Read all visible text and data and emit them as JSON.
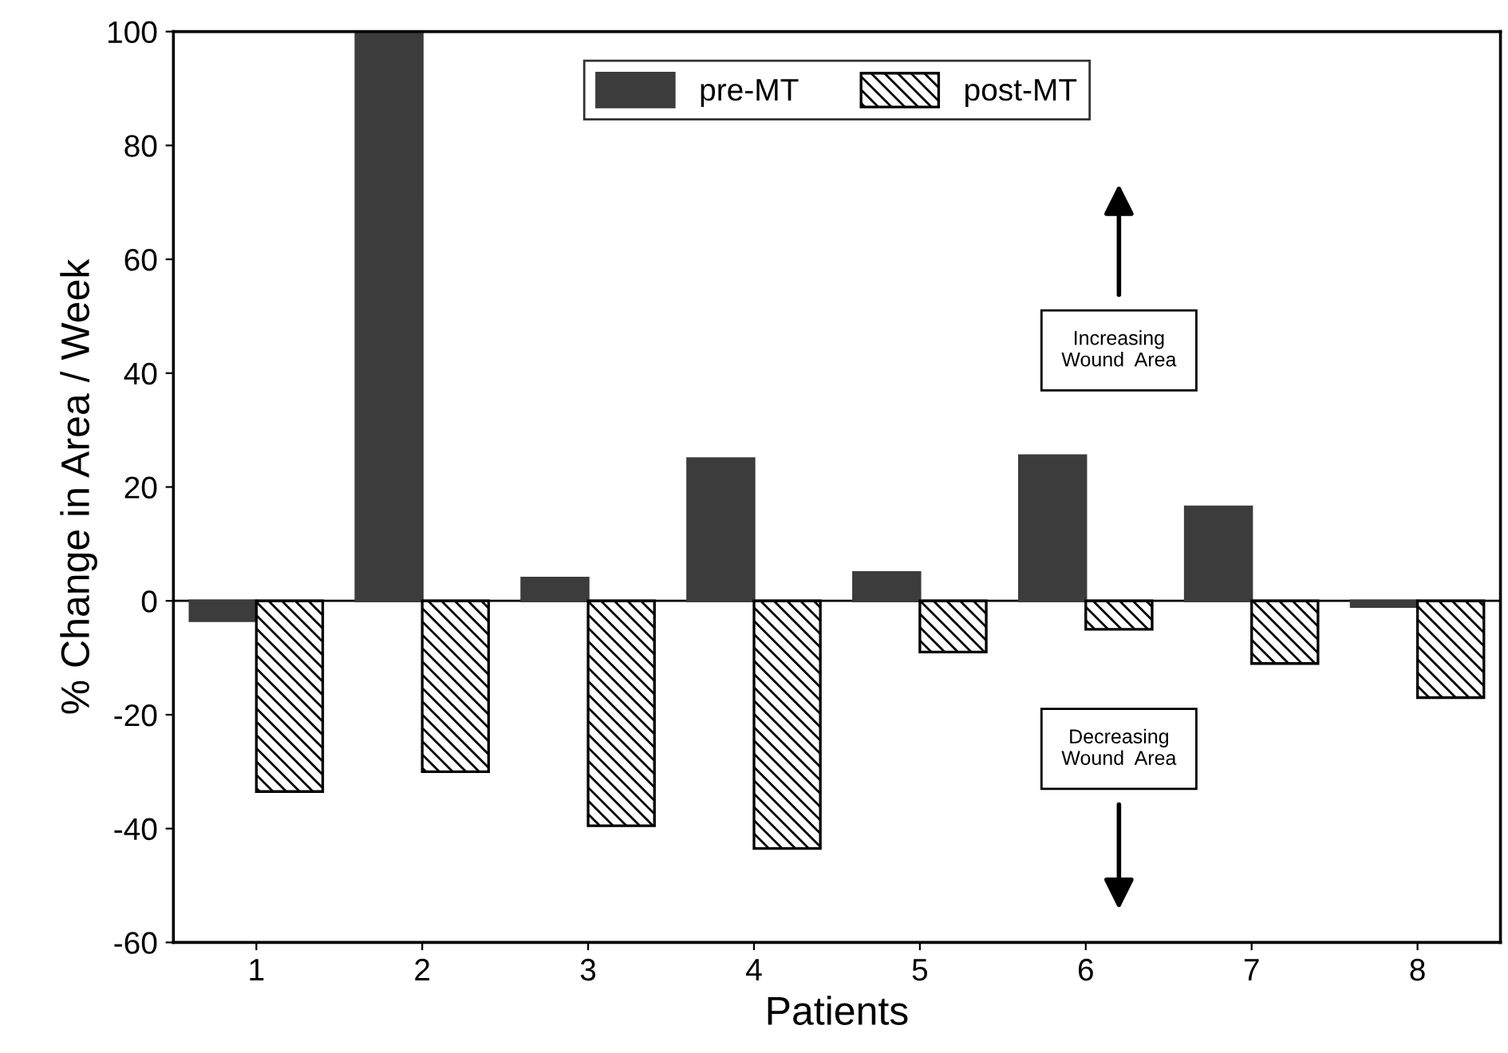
{
  "chart_data": {
    "type": "bar",
    "xlabel": "Patients",
    "ylabel": "% Change in Area / Week",
    "categories": [
      "1",
      "2",
      "3",
      "4",
      "5",
      "6",
      "7",
      "8"
    ],
    "series": [
      {
        "name": "pre-MT",
        "color": "#3c3c3c",
        "values": [
          -3.5,
          100,
          4,
          25,
          5,
          25.5,
          16.5,
          -1
        ]
      },
      {
        "name": "post-MT",
        "color": "#000000",
        "values": [
          -33.5,
          -30,
          -39.5,
          -43.5,
          -9,
          -5,
          -11,
          -17
        ]
      }
    ],
    "ylim": [
      -60,
      100
    ],
    "yticks": [
      -60,
      -40,
      -20,
      0,
      20,
      40,
      60,
      80,
      100
    ],
    "annotations": [
      "Increasing\nWound  Area",
      "Decreasing\nWound  Area"
    ],
    "ref_lines": [
      {
        "axis": "y",
        "value": 0,
        "color": "#000000"
      }
    ],
    "legend": "top",
    "grid": false
  }
}
